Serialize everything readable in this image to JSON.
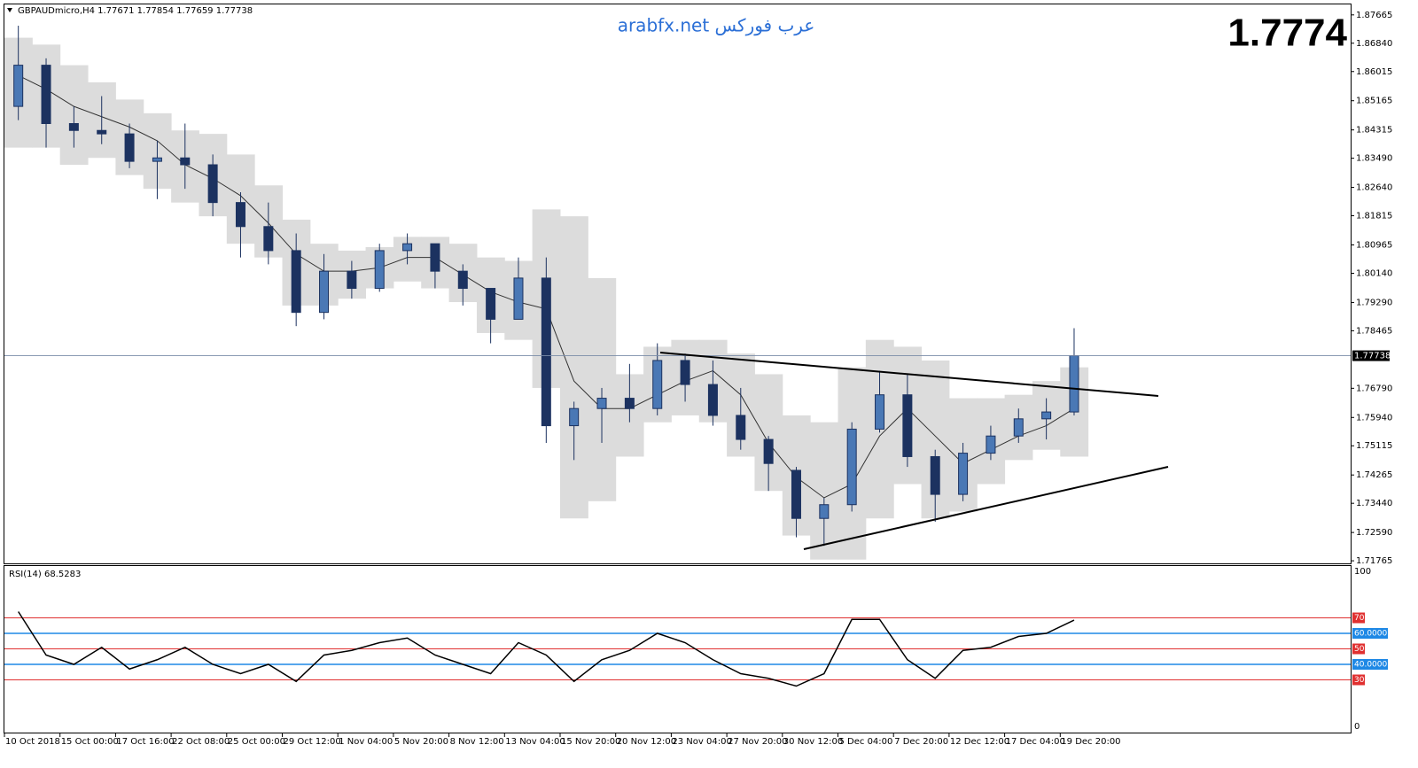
{
  "chart_data": [
    {
      "type": "candlestick",
      "symbol_label": "GBPAUDmicro,H4  1.77671 1.77854 1.77659 1.77738",
      "watermark": "arabfx.net عرب فوركس",
      "price_display": "1.7774",
      "current_price": 1.77738,
      "categories": [
        "10 Oct 2018",
        null,
        "15 Oct 00:00",
        null,
        "17 Oct 16:00",
        null,
        "22 Oct 08:00",
        null,
        "25 Oct 00:00",
        null,
        "29 Oct 12:00",
        null,
        "1 Nov 04:00",
        null,
        "5 Nov 20:00",
        null,
        "8 Nov 12:00",
        null,
        "13 Nov 04:00",
        null,
        "15 Nov 20:00",
        null,
        "20 Nov 12:00",
        null,
        "23 Nov 04:00",
        null,
        "27 Nov 20:00",
        null,
        "30 Nov 12:00",
        null,
        "5 Dec 04:00",
        null,
        "7 Dec 20:00",
        null,
        "12 Dec 12:00",
        null,
        "17 Dec 04:00",
        null,
        "19 Dec 20:00"
      ],
      "open": [
        1.85,
        1.862,
        1.845,
        1.843,
        1.842,
        1.834,
        1.835,
        1.833,
        1.822,
        1.815,
        1.808,
        1.79,
        1.802,
        1.797,
        1.808,
        1.81,
        1.802,
        1.797,
        1.788,
        1.8,
        1.757,
        1.762,
        1.765,
        1.762,
        1.776,
        1.769,
        1.76,
        1.753,
        1.744,
        1.73,
        1.734,
        1.756,
        1.766,
        1.748,
        1.737,
        1.749,
        1.754,
        1.759,
        1.761
      ],
      "high": [
        1.8735,
        1.864,
        1.85,
        1.853,
        1.845,
        1.84,
        1.845,
        1.836,
        1.825,
        1.822,
        1.813,
        1.807,
        1.805,
        1.81,
        1.813,
        1.81,
        1.804,
        1.797,
        1.806,
        1.806,
        1.764,
        1.768,
        1.775,
        1.781,
        1.778,
        1.776,
        1.768,
        1.754,
        1.745,
        1.736,
        1.758,
        1.773,
        1.772,
        1.75,
        1.752,
        1.757,
        1.762,
        1.765,
        1.7854
      ],
      "low": [
        1.846,
        1.838,
        1.838,
        1.839,
        1.832,
        1.823,
        1.826,
        1.818,
        1.806,
        1.804,
        1.786,
        1.788,
        1.794,
        1.796,
        1.804,
        1.797,
        1.792,
        1.781,
        1.788,
        1.752,
        1.747,
        1.752,
        1.758,
        1.76,
        1.764,
        1.757,
        1.75,
        1.738,
        1.7245,
        1.722,
        1.732,
        1.755,
        1.745,
        1.729,
        1.735,
        1.747,
        1.752,
        1.753,
        1.76
      ],
      "close": [
        1.862,
        1.845,
        1.843,
        1.842,
        1.834,
        1.835,
        1.833,
        1.822,
        1.815,
        1.808,
        1.79,
        1.802,
        1.797,
        1.808,
        1.81,
        1.802,
        1.797,
        1.788,
        1.8,
        1.757,
        1.762,
        1.765,
        1.762,
        1.776,
        1.769,
        1.76,
        1.753,
        1.746,
        1.73,
        1.734,
        1.756,
        1.766,
        1.748,
        1.737,
        1.749,
        1.754,
        1.759,
        1.761,
        1.7774
      ],
      "moving_average": [
        1.859,
        1.855,
        1.85,
        1.847,
        1.844,
        1.84,
        1.833,
        1.829,
        1.824,
        1.816,
        1.807,
        1.802,
        1.802,
        1.803,
        1.806,
        1.806,
        1.801,
        1.796,
        1.793,
        1.791,
        1.77,
        1.762,
        1.762,
        1.766,
        1.77,
        1.773,
        1.766,
        1.752,
        1.742,
        1.736,
        1.74,
        1.754,
        1.762,
        1.754,
        1.746,
        1.75,
        1.754,
        1.757,
        1.762
      ],
      "band_upper": [
        1.87,
        1.868,
        1.862,
        1.857,
        1.852,
        1.848,
        1.843,
        1.842,
        1.836,
        1.827,
        1.817,
        1.81,
        1.808,
        1.809,
        1.812,
        1.812,
        1.81,
        1.806,
        1.805,
        1.82,
        1.818,
        1.8,
        1.772,
        1.78,
        1.782,
        1.782,
        1.778,
        1.772,
        1.76,
        1.758,
        1.774,
        1.782,
        1.78,
        1.776,
        1.765,
        1.765,
        1.766,
        1.77,
        1.774
      ],
      "band_lower": [
        1.838,
        1.838,
        1.833,
        1.835,
        1.83,
        1.826,
        1.822,
        1.818,
        1.81,
        1.806,
        1.792,
        1.792,
        1.794,
        1.797,
        1.799,
        1.797,
        1.793,
        1.784,
        1.782,
        1.768,
        1.73,
        1.735,
        1.748,
        1.758,
        1.76,
        1.758,
        1.748,
        1.738,
        1.725,
        1.718,
        1.718,
        1.73,
        1.74,
        1.73,
        1.732,
        1.74,
        1.747,
        1.75,
        1.748
      ],
      "up_color": "#4a78b5",
      "down_color": "#1c3260",
      "wick_color": "#1c3260",
      "ma_color": "#333333",
      "band_color": "#dcdcdc",
      "price_line_color": "#7a8ca8",
      "ylim": [
        1.7169,
        1.8797
      ],
      "yticks": [
        1.87665,
        {
          "value": 1.8684,
          "label": "1.86840"
        },
        1.86015,
        1.85165,
        1.84315,
        {
          "value": 1.8349,
          "label": "1.83490"
        },
        {
          "value": 1.8264,
          "label": "1.82640"
        },
        1.81815,
        1.80965,
        {
          "value": 1.8014,
          "label": "1.80140"
        },
        {
          "value": 1.7929,
          "label": "1.79290"
        },
        1.78465,
        {
          "value": 1.7679,
          "label": "1.76790"
        },
        {
          "value": 1.7594,
          "label": "1.75940"
        },
        1.75115,
        1.74265,
        {
          "value": 1.7344,
          "label": "1.73440"
        },
        {
          "value": 1.7259,
          "label": "1.72590"
        },
        1.71765
      ]
    },
    {
      "type": "line",
      "title": "RSI(14) 68.5283",
      "values": [
        74,
        46,
        40,
        51,
        37,
        43,
        51,
        40,
        34,
        40,
        29,
        46,
        49,
        54,
        57,
        46,
        40,
        34,
        54,
        46,
        29,
        43,
        49,
        60,
        54,
        43,
        34,
        31,
        26,
        34,
        69,
        69,
        43,
        31,
        49,
        51,
        58,
        60,
        68.5283
      ],
      "color": "#000000",
      "ylim": [
        0,
        100
      ],
      "yticks": [
        0,
        100
      ],
      "levels": [
        {
          "value": 70,
          "color": "#e03030"
        },
        {
          "value": 60,
          "label": "60.0000",
          "color": "#1e88e5"
        },
        {
          "value": 50,
          "color": "#e03030"
        },
        {
          "value": 40,
          "label": "40.0000",
          "color": "#1e88e5"
        },
        {
          "value": 30,
          "color": "#e03030"
        }
      ]
    }
  ]
}
